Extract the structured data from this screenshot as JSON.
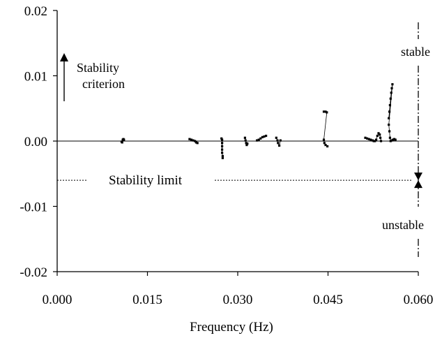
{
  "chart_data": {
    "type": "scatter",
    "title": "",
    "xlabel": "Frequency (Hz)",
    "ylabel": "",
    "xlim": [
      0.0,
      0.06
    ],
    "ylim": [
      -0.02,
      0.02
    ],
    "x_ticks": [
      "0.000",
      "0.015",
      "0.030",
      "0.045",
      "0.060"
    ],
    "y_ticks": [
      "0.02",
      "0.01",
      "0.00",
      "-0.01",
      "-0.02"
    ],
    "grid": false,
    "legend": "none",
    "stability_limit_value": -0.006,
    "annotations": {
      "stability_criterion_line1": "Stability",
      "stability_criterion_line2": "criterion",
      "stability_limit": "Stability limit",
      "stable": "stable",
      "unstable": "unstable"
    },
    "series": [
      {
        "clusters": [
          {
            "points": [
              [
                0.0107,
                -0.0001
              ],
              [
                0.0109,
                0.0002
              ],
              [
                0.011,
                0.0003
              ],
              [
                0.0111,
                0.0002
              ],
              [
                0.0108,
                -0.0002
              ]
            ]
          },
          {
            "points": [
              [
                0.022,
                0.0003
              ],
              [
                0.0223,
                0.0002
              ],
              [
                0.0226,
                0.0001
              ],
              [
                0.0229,
                0.0
              ],
              [
                0.0231,
                -0.0002
              ],
              [
                0.0233,
                -0.0003
              ]
            ]
          },
          {
            "points": [
              [
                0.0273,
                0.0004
              ],
              [
                0.0274,
                0.0002
              ],
              [
                0.0274,
                -0.0003
              ],
              [
                0.0274,
                -0.0008
              ],
              [
                0.0274,
                -0.0013
              ],
              [
                0.0274,
                -0.0018
              ],
              [
                0.0275,
                -0.0023
              ],
              [
                0.0275,
                -0.0026
              ]
            ]
          },
          {
            "points": [
              [
                0.0312,
                0.0005
              ],
              [
                0.0313,
                0.0001
              ],
              [
                0.0314,
                -0.0003
              ],
              [
                0.0315,
                -0.0006
              ],
              [
                0.0316,
                -0.0004
              ]
            ]
          },
          {
            "points": [
              [
                0.0332,
                0.0001
              ],
              [
                0.0335,
                0.0002
              ],
              [
                0.0338,
                0.0004
              ],
              [
                0.0341,
                0.0006
              ],
              [
                0.0344,
                0.0007
              ],
              [
                0.0347,
                0.0008
              ]
            ]
          },
          {
            "points": [
              [
                0.0364,
                0.0005
              ],
              [
                0.0366,
                0.0001
              ],
              [
                0.0367,
                -0.0003
              ],
              [
                0.0369,
                -0.0007
              ],
              [
                0.0371,
                0.0001
              ]
            ]
          },
          {
            "points": [
              [
                0.0443,
                0.0045
              ],
              [
                0.0446,
                0.0045
              ],
              [
                0.0448,
                0.0044
              ],
              [
                0.0443,
                0.0002
              ],
              [
                0.0444,
                -0.0003
              ],
              [
                0.0446,
                -0.0006
              ],
              [
                0.0449,
                -0.0008
              ]
            ]
          },
          {
            "points": [
              [
                0.0512,
                0.0005
              ],
              [
                0.0515,
                0.0004
              ],
              [
                0.0518,
                0.0003
              ],
              [
                0.0521,
                0.0002
              ],
              [
                0.0524,
                0.0001
              ],
              [
                0.0526,
                0.0
              ],
              [
                0.0528,
                0.0
              ]
            ]
          },
          {
            "points": [
              [
                0.053,
                0.0002
              ],
              [
                0.0532,
                0.0008
              ],
              [
                0.0534,
                0.0012
              ],
              [
                0.0536,
                0.001
              ],
              [
                0.0537,
                0.0005
              ],
              [
                0.0538,
                0.0
              ]
            ]
          },
          {
            "points": [
              [
                0.0551,
                0.0035
              ],
              [
                0.0552,
                0.0045
              ],
              [
                0.0553,
                0.0055
              ],
              [
                0.0554,
                0.0065
              ],
              [
                0.0555,
                0.0074
              ],
              [
                0.0556,
                0.0081
              ],
              [
                0.0557,
                0.0087
              ],
              [
                0.0551,
                0.0025
              ],
              [
                0.0552,
                0.0015
              ],
              [
                0.0553,
                0.0005
              ],
              [
                0.0554,
                0.0
              ],
              [
                0.0556,
                0.0001
              ],
              [
                0.0558,
                0.0002
              ],
              [
                0.056,
                0.0003
              ],
              [
                0.0562,
                0.0002
              ]
            ]
          }
        ]
      }
    ]
  }
}
